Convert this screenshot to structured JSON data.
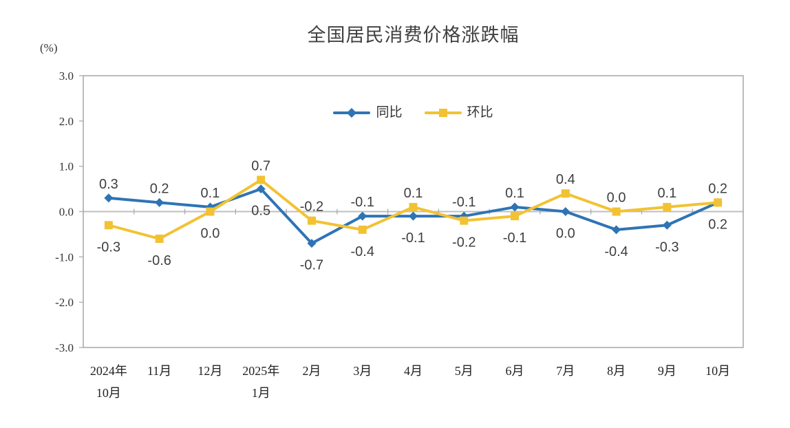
{
  "chart_data": {
    "type": "line",
    "title": "全国居民消费价格涨跌幅",
    "unit_label": "(%)",
    "legend_position": "top-center",
    "grid": "zero-axis-only",
    "ylim": [
      -3.0,
      3.0
    ],
    "yticks": [
      "3.0",
      "2.0",
      "1.0",
      "0.0",
      "-1.0",
      "-2.0",
      "-3.0"
    ],
    "categories": [
      [
        "2024年",
        "10月"
      ],
      [
        "11月"
      ],
      [
        "12月"
      ],
      [
        "2025年",
        "1月"
      ],
      [
        "2月"
      ],
      [
        "3月"
      ],
      [
        "4月"
      ],
      [
        "5月"
      ],
      [
        "6月"
      ],
      [
        "7月"
      ],
      [
        "8月"
      ],
      [
        "9月"
      ],
      [
        "10月"
      ]
    ],
    "series": [
      {
        "name": "同比",
        "marker": "diamond",
        "color": "#2E74B5",
        "values": [
          0.3,
          0.2,
          0.1,
          0.5,
          -0.7,
          -0.1,
          -0.1,
          -0.1,
          0.1,
          0.0,
          -0.4,
          -0.3,
          0.2
        ]
      },
      {
        "name": "环比",
        "marker": "square",
        "color": "#F2C232",
        "values": [
          -0.3,
          -0.6,
          0.0,
          0.7,
          -0.2,
          -0.4,
          0.1,
          -0.2,
          -0.1,
          0.4,
          0.0,
          0.1,
          0.2
        ]
      }
    ],
    "colors": {
      "axis": "#A6A6A6",
      "zero_line": "#BFBFBF",
      "tick_text": "#333333",
      "xlabel_text": "#222222",
      "data_label_text": "#3F3F3F",
      "title_text": "#404040"
    }
  }
}
